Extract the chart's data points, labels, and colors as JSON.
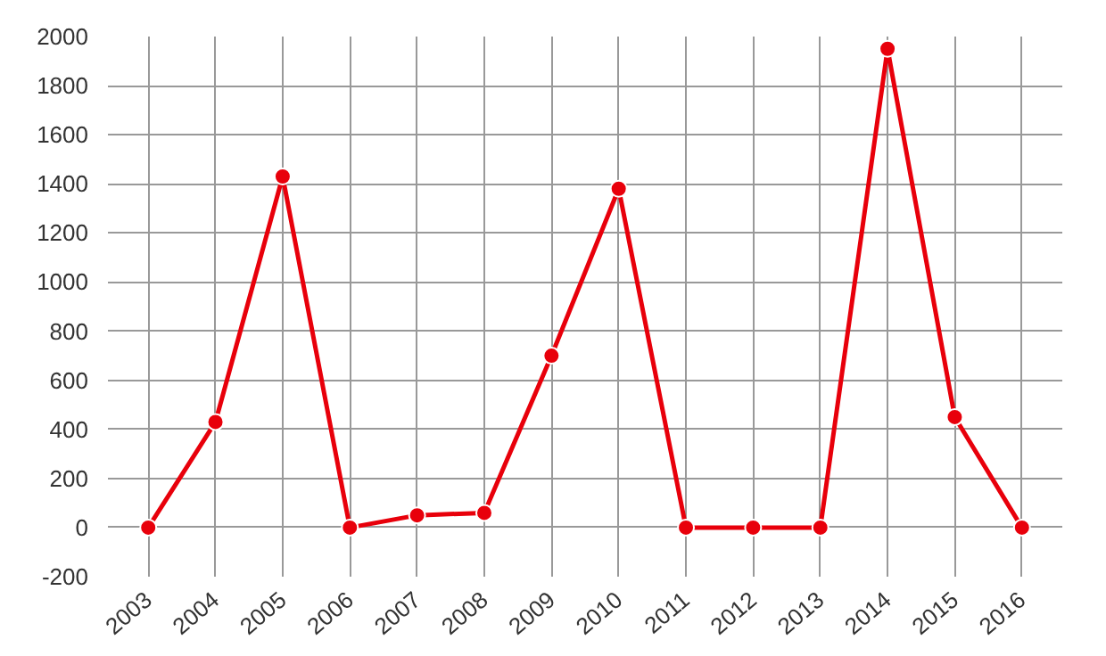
{
  "chart_data": {
    "type": "line",
    "categories": [
      "2003",
      "2004",
      "2005",
      "2006",
      "2007",
      "2008",
      "2009",
      "2010",
      "2011",
      "2012",
      "2013",
      "2014",
      "2015",
      "2016"
    ],
    "series": [
      {
        "color": "#e8000b",
        "values": [
          0,
          430,
          1430,
          0,
          50,
          60,
          700,
          1380,
          0,
          0,
          0,
          1950,
          450,
          0
        ]
      }
    ],
    "ylim": [
      -200,
      2000
    ],
    "yticks": [
      -200,
      0,
      200,
      400,
      600,
      800,
      1000,
      1200,
      1400,
      1600,
      1800,
      2000
    ],
    "grid": true,
    "marker": "circle",
    "line_style": "solid"
  }
}
